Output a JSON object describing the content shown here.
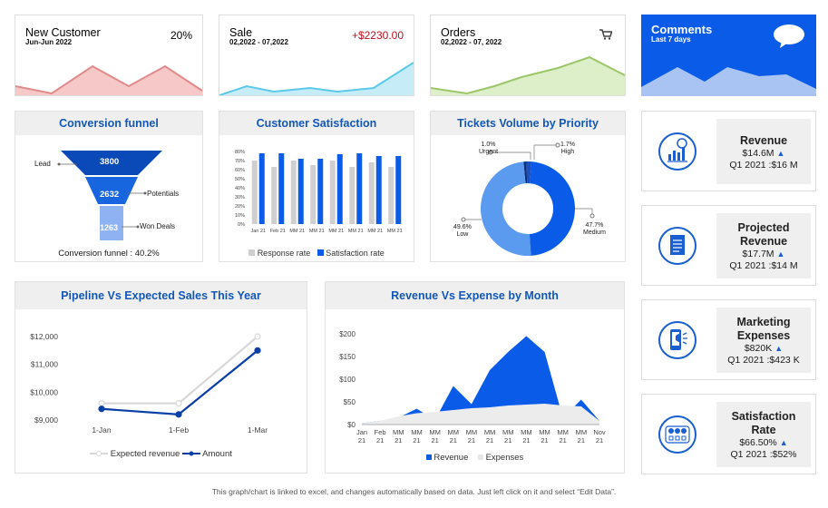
{
  "kpis": {
    "new_customer": {
      "title": "New Customer",
      "period": "Jun-Jun 2022",
      "value": "20%"
    },
    "sale": {
      "title": "Sale",
      "period": "02,2022 - 07,2022",
      "value": "+$2230.00"
    },
    "orders": {
      "title": "Orders",
      "period": "02,2022 - 07, 2022",
      "icon": "cart-icon"
    },
    "comments": {
      "title": "Comments",
      "period": "Last 7 days",
      "icon": "speech-bubble-icon"
    }
  },
  "colors": {
    "accent": "#0a5ce8",
    "pink": "#e08a8a",
    "cyan": "#5cc9e8",
    "green": "#9cc66a",
    "navy": "#0a3fa8"
  },
  "funnel": {
    "title": "Conversion funnel",
    "levels": [
      {
        "value": "3800",
        "label": "Lead"
      },
      {
        "value": "2632",
        "label": "Potentials"
      },
      {
        "value": "1263",
        "label": "Won Deals"
      }
    ],
    "footer": "Conversion funnel : 40.2%"
  },
  "satisfaction": {
    "title": "Customer Satisfaction",
    "legend": [
      "Response rate",
      "Satisfaction rate"
    ]
  },
  "tickets": {
    "title": "Tickets Volume by Priority",
    "labels": [
      {
        "pct": "1.0%",
        "name": "Urgent"
      },
      {
        "pct": "1.7%",
        "name": "High"
      },
      {
        "pct": "49.6%",
        "name": "Low"
      },
      {
        "pct": "47.7%",
        "name": "Medium"
      }
    ]
  },
  "pipeline": {
    "title": "Pipeline Vs Expected Sales This Year",
    "legend": [
      "Expected revenue",
      "Amount"
    ]
  },
  "revexp": {
    "title": "Revenue Vs Expense by Month",
    "legend": [
      "Revenue",
      "Expenses"
    ]
  },
  "side": [
    {
      "title": "Revenue",
      "value": "$14.6M",
      "q": "Q1 2021 :$16 M",
      "icon": "revenue-chart-icon"
    },
    {
      "title": "Projected Revenue",
      "value": "$17.7M",
      "q": "Q1 2021 :$14 M",
      "icon": "document-icon"
    },
    {
      "title": "Marketing Expenses",
      "value": "$820K",
      "q": "Q1 2021 :$423 K",
      "icon": "phone-megaphone-icon"
    },
    {
      "title": "Satisfaction Rate",
      "value": "$66.50%",
      "q": "Q1 2021 :$52%",
      "icon": "rating-faces-icon"
    }
  ],
  "footer": "This graph/chart is linked to excel, and changes automatically based on data. Just left click on it and select “Edit Data”.",
  "chart_data": [
    {
      "type": "bar",
      "title": "Customer Satisfaction",
      "categories": [
        "Jan 21",
        "Feb 21",
        "MM 21",
        "MM 21",
        "MM 21",
        "MM 21",
        "MM 21",
        "MM 21"
      ],
      "ylim": [
        0,
        80
      ],
      "yticks": [
        "0%",
        "10%",
        "20%",
        "30%",
        "40%",
        "50%",
        "60%",
        "70%",
        "80%"
      ],
      "series": [
        {
          "name": "Response rate",
          "values": [
            70,
            63,
            70,
            65,
            70,
            63,
            68,
            63
          ]
        },
        {
          "name": "Satisfaction rate",
          "values": [
            78,
            78,
            72,
            72,
            77,
            78,
            75,
            75
          ]
        }
      ]
    },
    {
      "type": "pie",
      "title": "Tickets Volume by Priority",
      "slices": [
        {
          "name": "Urgent",
          "value": 1.0
        },
        {
          "name": "High",
          "value": 1.7
        },
        {
          "name": "Medium",
          "value": 47.7
        },
        {
          "name": "Low",
          "value": 49.6
        }
      ]
    },
    {
      "type": "line",
      "title": "Pipeline Vs Expected Sales This Year",
      "categories": [
        "1-Jan",
        "1-Feb",
        "1-Mar"
      ],
      "ylim": [
        9000,
        12000
      ],
      "yticks": [
        "$9,000",
        "$10,000",
        "$11,000",
        "$12,000"
      ],
      "series": [
        {
          "name": "Expected revenue",
          "values": [
            9600,
            9600,
            12000
          ]
        },
        {
          "name": "Amount",
          "values": [
            9400,
            9200,
            11500
          ]
        }
      ]
    },
    {
      "type": "area",
      "title": "Revenue Vs Expense by Month",
      "categories": [
        "Jan 21",
        "Feb 21",
        "MM 21",
        "MM 21",
        "MM 21",
        "MM 21",
        "MM 21",
        "MM 21",
        "MM 21",
        "MM 21",
        "MM 21",
        "MM 21",
        "MM 21",
        "Nov 21"
      ],
      "ylim": [
        0,
        200
      ],
      "yticks": [
        "$0",
        "$50",
        "$100",
        "$150",
        "$200"
      ],
      "series": [
        {
          "name": "Revenue",
          "values": [
            3,
            8,
            15,
            35,
            10,
            85,
            45,
            120,
            160,
            195,
            160,
            15,
            55,
            8
          ]
        },
        {
          "name": "Expenses",
          "values": [
            3,
            8,
            18,
            25,
            28,
            32,
            36,
            38,
            42,
            44,
            46,
            42,
            40,
            8
          ]
        }
      ]
    }
  ]
}
